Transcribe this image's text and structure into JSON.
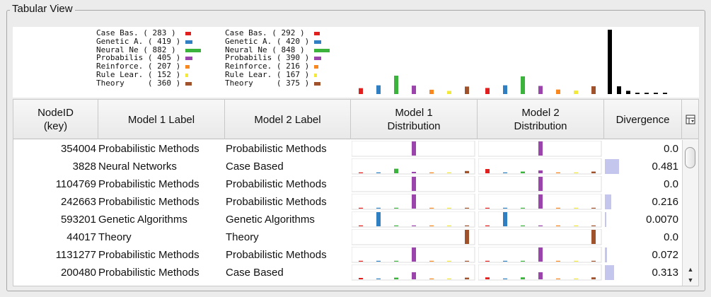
{
  "panel": {
    "title": "Tabular View"
  },
  "colors": {
    "case_based": "#e01f1f",
    "genetic": "#2f7fc2",
    "neural": "#3cb33c",
    "probabilistic": "#9b45ac",
    "reinforcement": "#f7871e",
    "rule": "#f2e93a",
    "theory": "#a0522d",
    "divergence_bar": "#c4c6ee",
    "divergence_hist": "#000000"
  },
  "summary": {
    "model1_legend": [
      {
        "text": "Case Bas. ( 283 )",
        "color": "#e01f1f",
        "swatch": 7
      },
      {
        "text": "Genetic A. ( 419 )",
        "color": "#2f7fc2",
        "swatch": 9
      },
      {
        "text": "Neural Ne ( 882 )",
        "color": "#3cb33c",
        "swatch": 20
      },
      {
        "text": "Probabilis ( 405 )",
        "color": "#9b45ac",
        "swatch": 9
      },
      {
        "text": "Reinforce. ( 207 )",
        "color": "#f7871e",
        "swatch": 5
      },
      {
        "text": "Rule Lear. ( 152 )",
        "color": "#f2e93a",
        "swatch": 4
      },
      {
        "text": "Theory     ( 360 )",
        "color": "#a0522d",
        "swatch": 8
      }
    ],
    "model2_legend": [
      {
        "text": "Case Bas. ( 292 )",
        "color": "#e01f1f",
        "swatch": 7
      },
      {
        "text": "Genetic A. ( 420 )",
        "color": "#2f7fc2",
        "swatch": 9
      },
      {
        "text": "Neural Ne ( 848 )",
        "color": "#3cb33c",
        "swatch": 20
      },
      {
        "text": "Probabilis ( 390 )",
        "color": "#9b45ac",
        "swatch": 9
      },
      {
        "text": "Reinforce. ( 216 )",
        "color": "#f7871e",
        "swatch": 5
      },
      {
        "text": "Rule Lear. ( 167 )",
        "color": "#f2e93a",
        "swatch": 4
      },
      {
        "text": "Theory     ( 375 )",
        "color": "#a0522d",
        "swatch": 8
      }
    ],
    "model1_counts": [
      283,
      419,
      882,
      405,
      207,
      152,
      360
    ],
    "model2_counts": [
      292,
      420,
      848,
      390,
      216,
      167,
      375
    ],
    "divergence_histogram": [
      1.0,
      0.12,
      0.05,
      0.02,
      0.02,
      0.02,
      0.02
    ]
  },
  "table": {
    "headers": {
      "nodeid": [
        "NodeID",
        "(key)"
      ],
      "model1_label": "Model 1 Label",
      "model2_label": "Model 2 Label",
      "model1_dist": [
        "Model 1",
        "Distribution"
      ],
      "model2_dist": [
        "Model 2",
        "Distribution"
      ],
      "divergence": "Divergence"
    },
    "corner_icon": "table-settings-icon",
    "rows": [
      {
        "key": "354004",
        "m1": "Probabilistic Methods",
        "m2": "Probabilistic Methods",
        "d1": [
          0,
          0,
          0,
          1,
          0,
          0,
          0
        ],
        "d2": [
          0,
          0,
          0,
          1,
          0,
          0,
          0
        ],
        "div": "0.0",
        "div_value": 0.0
      },
      {
        "key": "3828",
        "m1": "Neural Networks",
        "m2": "Case Based",
        "d1": [
          0.06,
          0.06,
          0.32,
          0.1,
          0.06,
          0.06,
          0.16
        ],
        "d2": [
          0.3,
          0.06,
          0.12,
          0.2,
          0.06,
          0.06,
          0.12
        ],
        "div": "0.481",
        "div_value": 0.481
      },
      {
        "key": "1104769",
        "m1": "Probabilistic Methods",
        "m2": "Probabilistic Methods",
        "d1": [
          0,
          0,
          0,
          1,
          0,
          0,
          0
        ],
        "d2": [
          0,
          0,
          0,
          1,
          0,
          0,
          0
        ],
        "div": "0.0",
        "div_value": 0.0
      },
      {
        "key": "242663",
        "m1": "Probabilistic Methods",
        "m2": "Probabilistic Methods",
        "d1": [
          0.06,
          0.06,
          0.06,
          1,
          0.06,
          0.06,
          0.06
        ],
        "d2": [
          0.06,
          0.06,
          0.06,
          1,
          0.06,
          0.06,
          0.06
        ],
        "div": "0.216",
        "div_value": 0.216
      },
      {
        "key": "593201",
        "m1": "Genetic Algorithms",
        "m2": "Genetic Algorithms",
        "d1": [
          0.06,
          1,
          0.06,
          0.06,
          0.06,
          0.06,
          0.06
        ],
        "d2": [
          0.06,
          1,
          0.06,
          0.06,
          0.06,
          0.06,
          0.06
        ],
        "div": "0.0070",
        "div_value": 0.007
      },
      {
        "key": "44017",
        "m1": "Theory",
        "m2": "Theory",
        "d1": [
          0,
          0,
          0,
          0,
          0,
          0,
          1
        ],
        "d2": [
          0,
          0,
          0,
          0,
          0,
          0,
          1
        ],
        "div": "0.0",
        "div_value": 0.0
      },
      {
        "key": "1131277",
        "m1": "Probabilistic Methods",
        "m2": "Probabilistic Methods",
        "d1": [
          0.06,
          0.06,
          0.06,
          1,
          0.06,
          0.06,
          0.06
        ],
        "d2": [
          0.06,
          0.06,
          0.06,
          1,
          0.06,
          0.06,
          0.06
        ],
        "div": "0.072",
        "div_value": 0.072
      },
      {
        "key": "200480",
        "m1": "Probabilistic Methods",
        "m2": "Case Based",
        "d1": [
          0.1,
          0.06,
          0.12,
          0.5,
          0.06,
          0.06,
          0.12
        ],
        "d2": [
          0.14,
          0.06,
          0.14,
          0.5,
          0.06,
          0.06,
          0.14
        ],
        "div": "0.313",
        "div_value": 0.313
      }
    ]
  }
}
